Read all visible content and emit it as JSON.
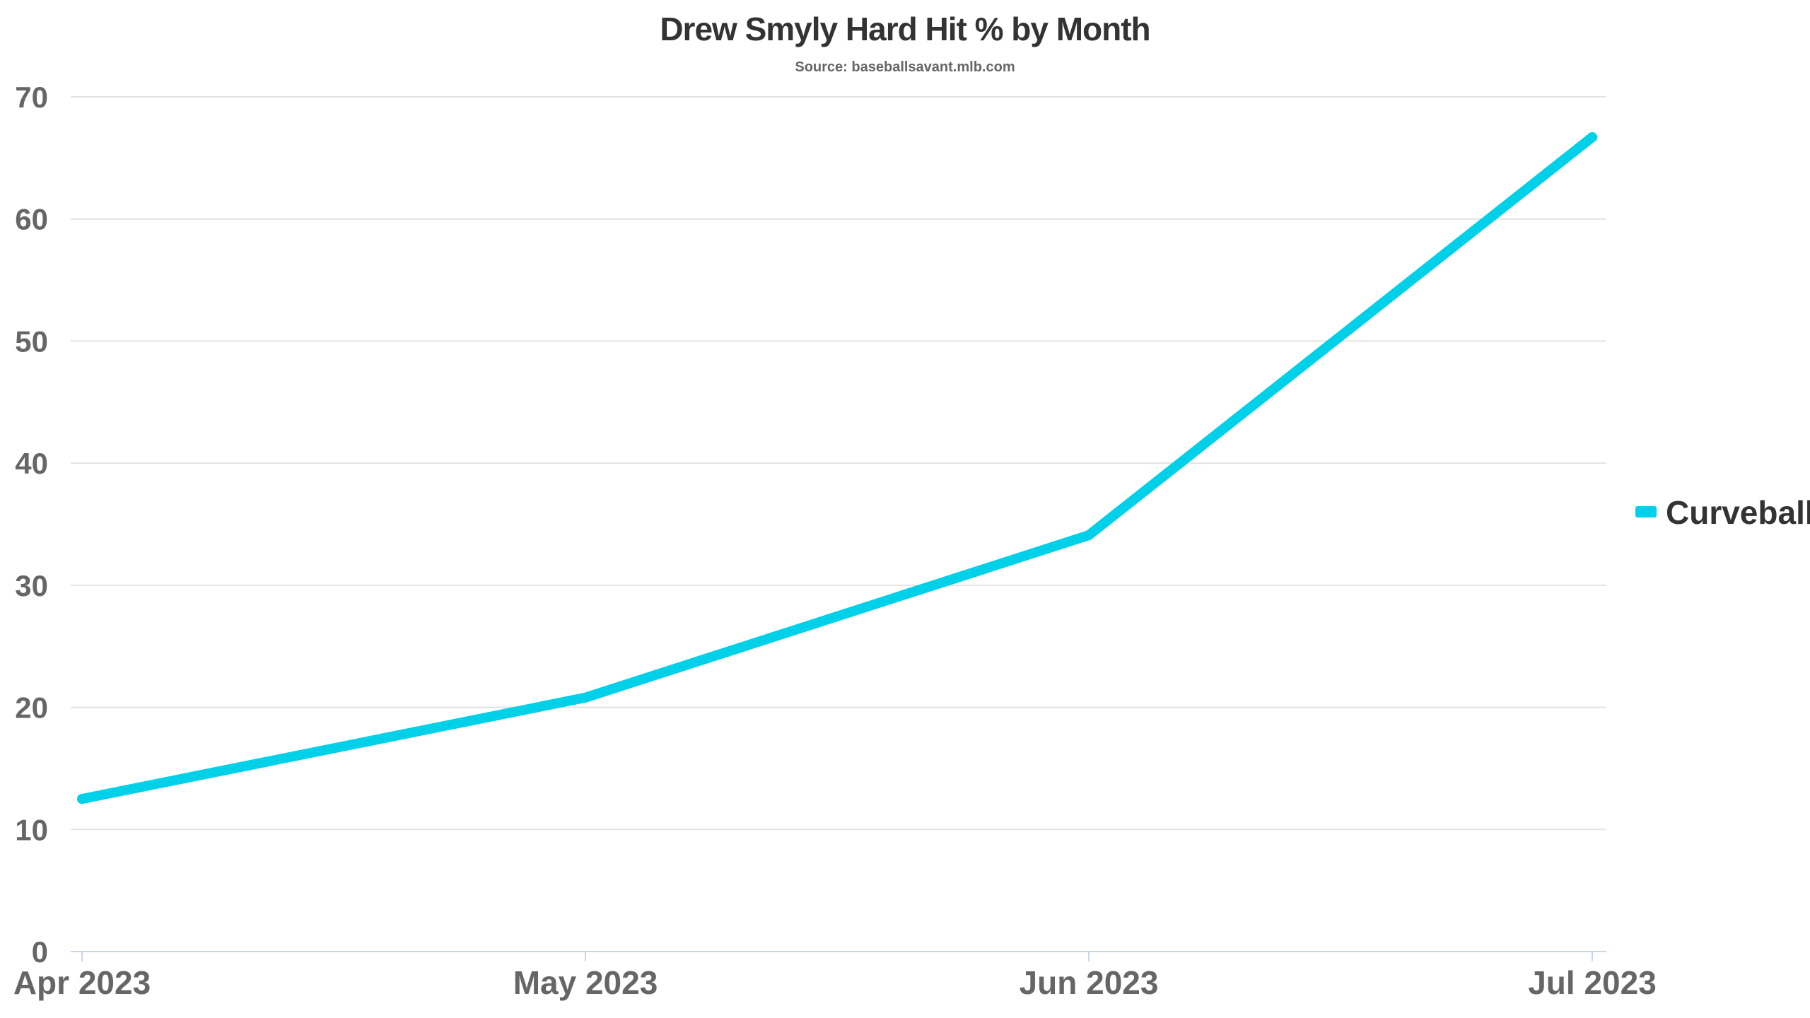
{
  "chart_data": {
    "type": "line",
    "title": "Drew Smyly Hard Hit % by Month",
    "subtitle": "Source: baseballsavant.mlb.com",
    "xlabel": "",
    "ylabel": "",
    "categories": [
      "Apr 2023",
      "May 2023",
      "Jun 2023",
      "Jul 2023"
    ],
    "series": [
      {
        "name": "Curveball",
        "values": [
          12.5,
          20.8,
          34.1,
          66.7
        ],
        "color": "#00d0e8"
      }
    ],
    "ylim": [
      0,
      70
    ],
    "yticks": [
      0,
      10,
      20,
      30,
      40,
      50,
      60,
      70
    ],
    "grid": true,
    "legend_position": "right"
  }
}
